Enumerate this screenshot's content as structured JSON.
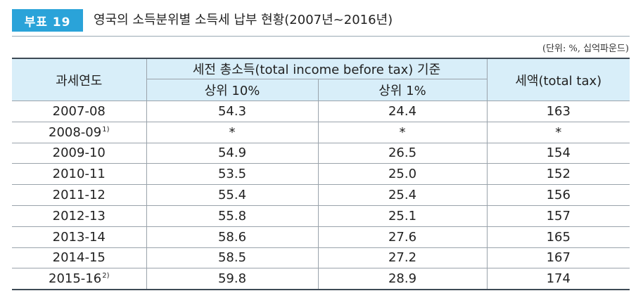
{
  "header": {
    "badge": "부표 19",
    "title": "영국의 소득분위별 소득세 납부 현황(2007년~2016년)",
    "unit": "(단위: %, 십억파운드)"
  },
  "table": {
    "col_year": "과세연도",
    "col_group": "세전 총소득(total income before tax) 기준",
    "col_top10": "상위 10%",
    "col_top1": "상위 1%",
    "col_tax": "세액(total tax)",
    "rows": [
      {
        "year": "2007-08",
        "note": "",
        "top10": "54.3",
        "top1": "24.4",
        "tax": "163"
      },
      {
        "year": "2008-09",
        "note": "1)",
        "top10": "*",
        "top1": "*",
        "tax": "*"
      },
      {
        "year": "2009-10",
        "note": "",
        "top10": "54.9",
        "top1": "26.5",
        "tax": "154"
      },
      {
        "year": "2010-11",
        "note": "",
        "top10": "53.5",
        "top1": "25.0",
        "tax": "152"
      },
      {
        "year": "2011-12",
        "note": "",
        "top10": "55.4",
        "top1": "25.4",
        "tax": "156"
      },
      {
        "year": "2012-13",
        "note": "",
        "top10": "55.8",
        "top1": "25.1",
        "tax": "157"
      },
      {
        "year": "2013-14",
        "note": "",
        "top10": "58.6",
        "top1": "27.6",
        "tax": "165"
      },
      {
        "year": "2014-15",
        "note": "",
        "top10": "58.5",
        "top1": "27.2",
        "tax": "167"
      },
      {
        "year": "2015-16",
        "note": "2)",
        "top10": "59.8",
        "top1": "28.9",
        "tax": "174"
      }
    ]
  },
  "colors": {
    "badge_bg": "#2aa3d9",
    "header_bg": "#d8eef9",
    "rule": "#3d4a55"
  }
}
